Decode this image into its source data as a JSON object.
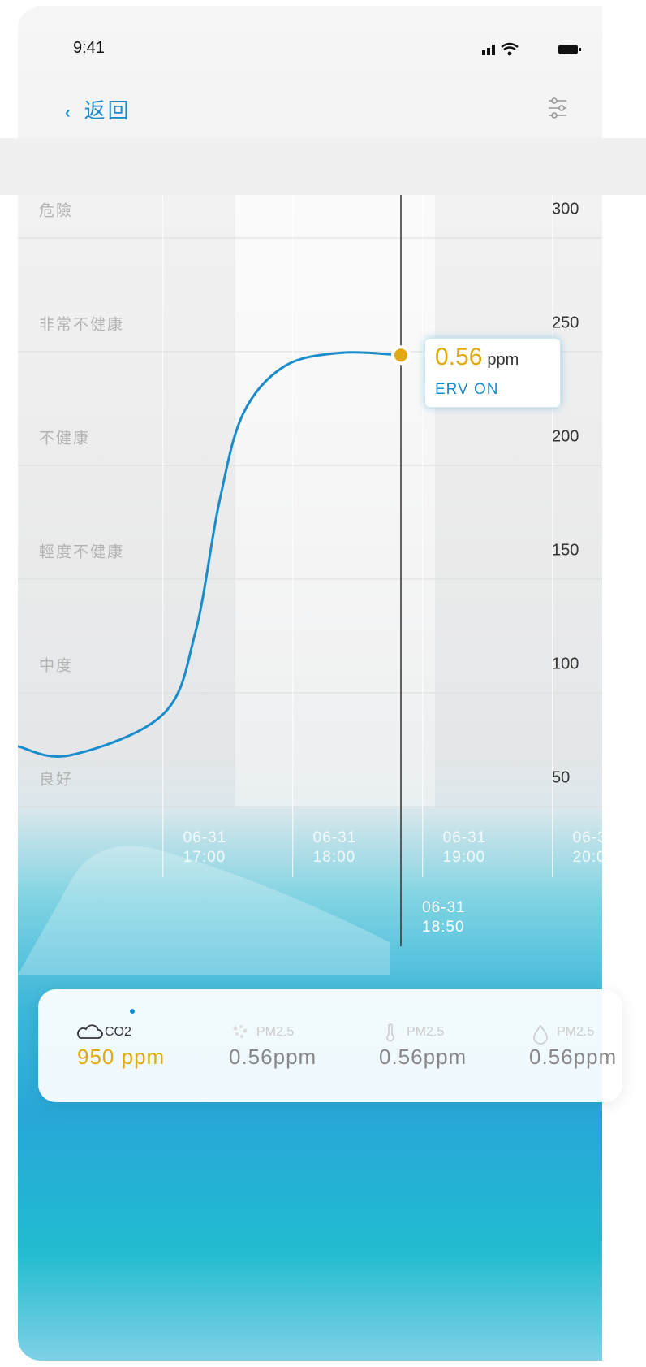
{
  "status_bar": {
    "time": "9:41"
  },
  "nav": {
    "back": "返回"
  },
  "chart_data": {
    "type": "line",
    "x": [
      "15:53",
      "16:17",
      "17:00",
      "17:15",
      "17:26",
      "17:37",
      "17:56",
      "18:22",
      "18:50"
    ],
    "series": [
      {
        "name": "CO2",
        "color": "#1a8ccc",
        "values": [
          64,
          60,
          78,
          114,
          171,
          210,
          231,
          237,
          236
        ]
      }
    ],
    "xlim": [
      "15:53",
      "20:23"
    ],
    "xticks": [
      {
        "value": "17:00",
        "label": "06-31 17:00"
      },
      {
        "value": "18:00",
        "label": "06-31 18:00"
      },
      {
        "value": "19:00",
        "label": "06-31 19:00"
      },
      {
        "value": "20:00",
        "label": "06-31 20:00"
      }
    ],
    "ylim": [
      37.5,
      300
    ],
    "yticks": [
      300,
      250,
      200,
      150,
      100,
      50
    ],
    "bands": [
      "危險",
      "非常不健康",
      "不健康",
      "輕度不健康",
      "中度",
      "良好"
    ],
    "cursor": {
      "x": "18:50",
      "label": "06-31 18:50",
      "value": "0.56",
      "unit": "ppm",
      "status": "ERV ON"
    }
  },
  "metrics": [
    {
      "name": "CO2",
      "value": "950 ppm"
    },
    {
      "name": "PM2.5",
      "value": "0.56ppm"
    },
    {
      "name": "PM2.5",
      "value": "0.56ppm"
    },
    {
      "name": "PM2.5",
      "value": "0.56ppm"
    }
  ]
}
